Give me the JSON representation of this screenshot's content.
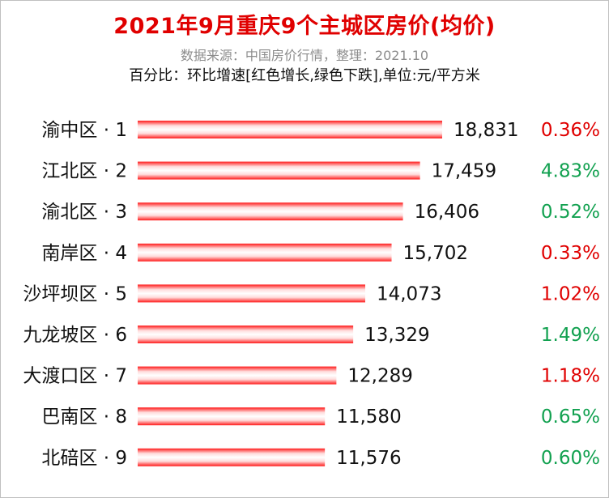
{
  "title": "2021年9月重庆9个主城区房价(均价)",
  "subtitle": "数据来源：中国房价行情，整理：2021.10",
  "note": "百分比：环比增速[红色增长,绿色下跌],单位:元/平方米",
  "colors": {
    "bar": "#ff0000",
    "up": "#e00000",
    "down": "#12a150"
  },
  "chart_data": {
    "type": "bar",
    "orientation": "horizontal",
    "categories": [
      "渝中区 · 1",
      "江北区 · 2",
      "渝北区 · 3",
      "南岸区 · 4",
      "沙坪坝区 · 5",
      "九龙坡区 · 6",
      "大渡口区 · 7",
      "巴南区 · 8",
      "北碚区 · 9"
    ],
    "values": [
      18831,
      17459,
      16406,
      15702,
      14073,
      13329,
      12289,
      11580,
      11576
    ],
    "value_labels": [
      "18,831",
      "17,459",
      "16,406",
      "15,702",
      "14,073",
      "13,329",
      "12,289",
      "11,580",
      "11,576"
    ],
    "change_labels": [
      "0.36%",
      "4.83%",
      "0.52%",
      "0.33%",
      "1.02%",
      "1.49%",
      "1.18%",
      "0.65%",
      "0.60%"
    ],
    "change_direction": [
      "up",
      "down",
      "down",
      "up",
      "up",
      "down",
      "up",
      "down",
      "down"
    ],
    "xlim": [
      0,
      18831
    ],
    "grid": false,
    "legend": "none"
  }
}
